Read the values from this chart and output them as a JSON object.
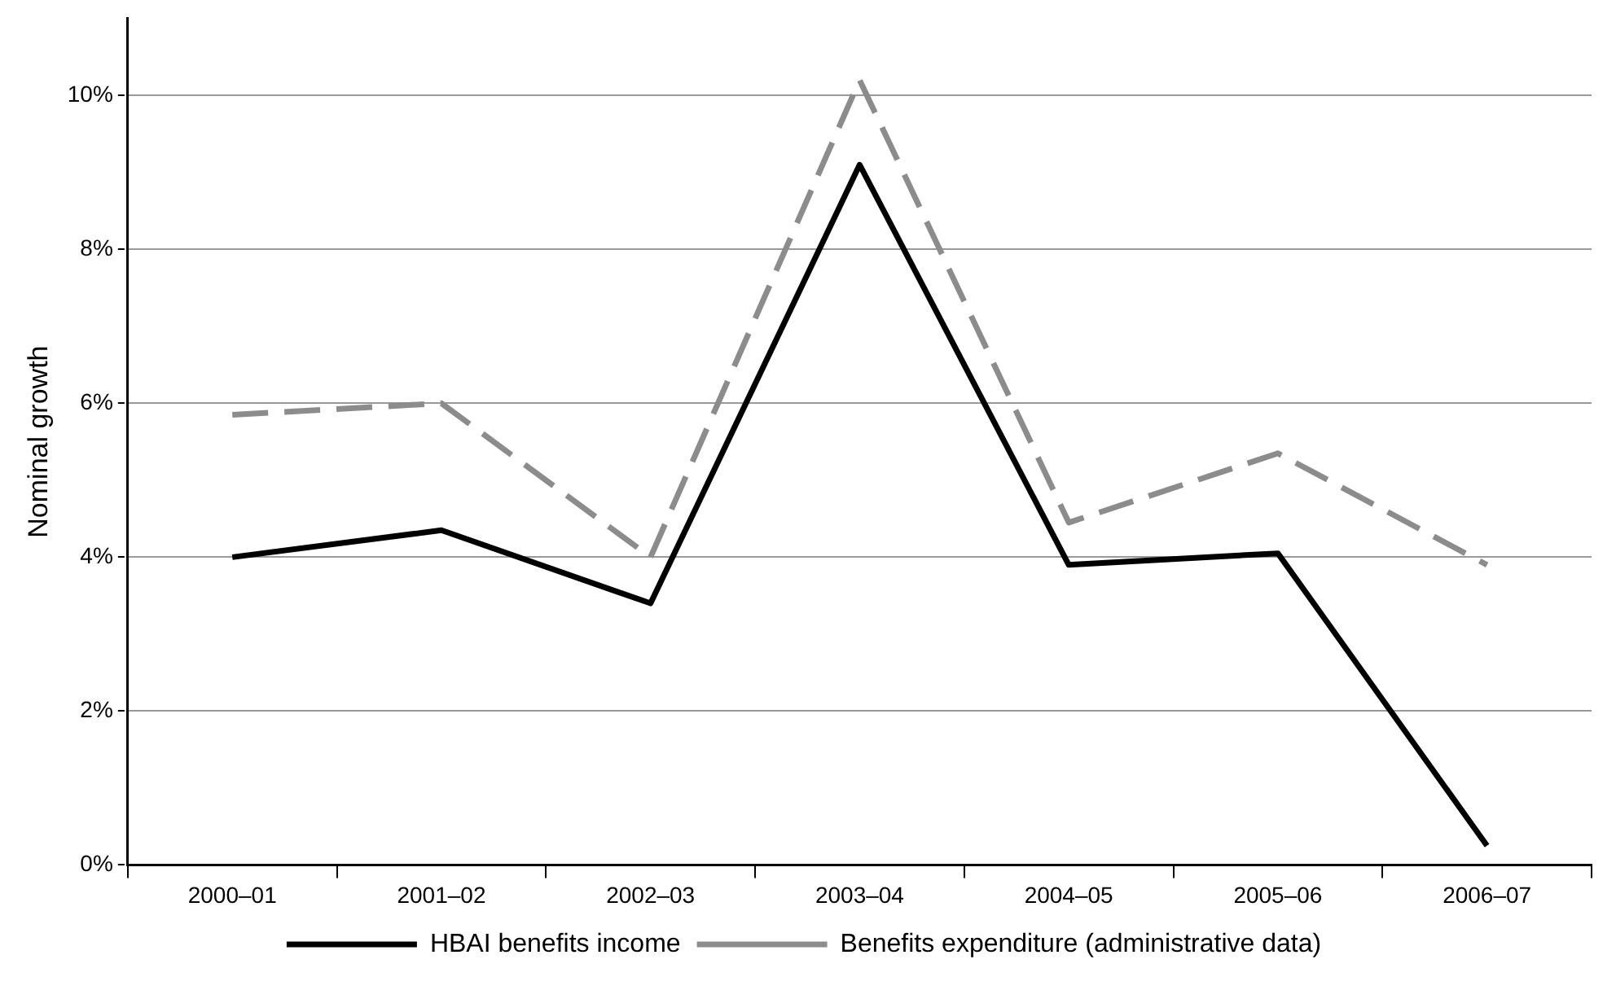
{
  "chart_data": {
    "type": "line",
    "ylabel": "Nominal growth",
    "categories": [
      "2000–01",
      "2001–02",
      "2002–03",
      "2003–04",
      "2004–05",
      "2005–06",
      "2006–07"
    ],
    "series": [
      {
        "name": "HBAI benefits income",
        "color": "#000000",
        "line_style": "solid",
        "values": [
          4.0,
          4.35,
          3.4,
          9.1,
          3.9,
          4.05,
          0.25
        ]
      },
      {
        "name": "Benefits expenditure (administrative data)",
        "color": "#8c8c8c",
        "line_style": "dashed",
        "values": [
          5.85,
          6.0,
          4.0,
          10.2,
          4.45,
          5.35,
          3.9
        ]
      }
    ],
    "ylim": [
      0,
      11
    ],
    "yticks": [
      {
        "value": 0,
        "label": "0%"
      },
      {
        "value": 2,
        "label": "2%"
      },
      {
        "value": 4,
        "label": "4%"
      },
      {
        "value": 6,
        "label": "6%"
      },
      {
        "value": 8,
        "label": "8%"
      },
      {
        "value": 10,
        "label": "10%"
      }
    ],
    "grid": "y",
    "legend": "bottom",
    "marker": "none"
  }
}
